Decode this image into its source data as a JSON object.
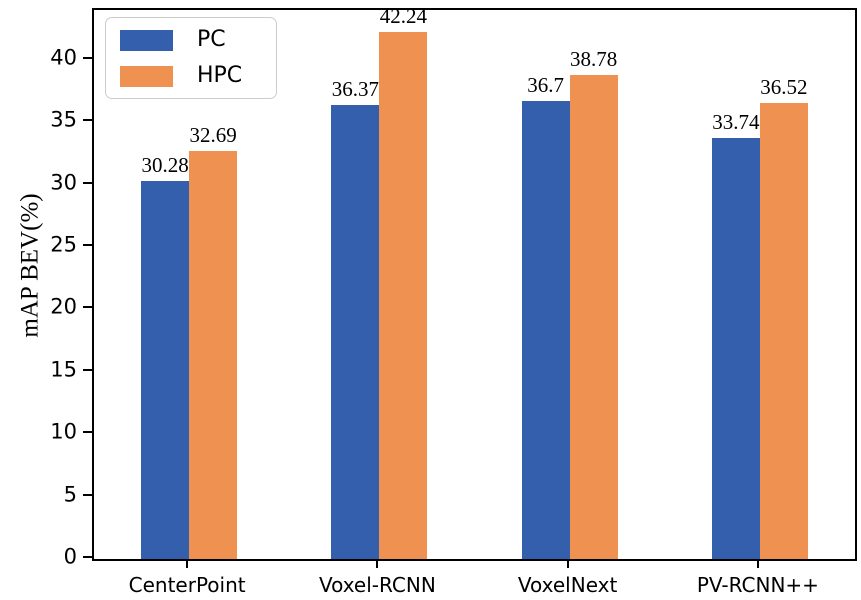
{
  "chart_data": {
    "type": "bar",
    "title": "",
    "xlabel": "",
    "ylabel": "mAP BEV(%)",
    "categories": [
      "CenterPoint",
      "Voxel-RCNN",
      "VoxelNext",
      "PV-RCNN++"
    ],
    "series": [
      {
        "name": "PC",
        "color": "#345FAC",
        "values": [
          30.28,
          36.37,
          36.7,
          33.74
        ]
      },
      {
        "name": "HPC",
        "color": "#EE9151",
        "values": [
          32.69,
          42.24,
          38.78,
          36.52
        ]
      }
    ],
    "ylim": [
      0,
      44
    ],
    "yticks": [
      0,
      5,
      10,
      15,
      20,
      25,
      30,
      35,
      40
    ],
    "grid": false,
    "value_labels": true,
    "legend_position": "upper-left",
    "colors": {
      "axis": "#000000",
      "legend_border": "#cccccc",
      "text": "#000000"
    }
  }
}
